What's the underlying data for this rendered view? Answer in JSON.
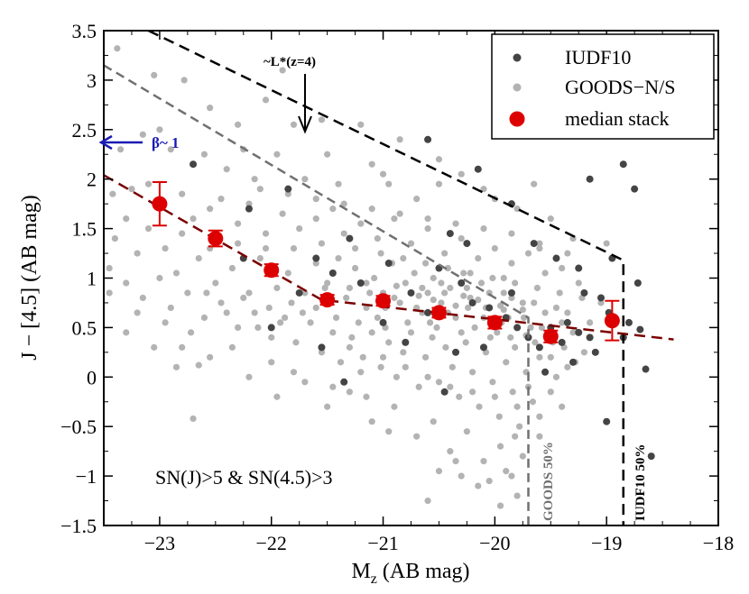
{
  "chart_data": {
    "type": "scatter",
    "title": "",
    "xlabel_main": "M",
    "xlabel_sub": "z",
    "xlabel_rest": " (AB mag)",
    "ylabel": "J − [4.5] (AB mag)",
    "xlim": [
      -23.5,
      -18
    ],
    "ylim": [
      -1.5,
      3.5
    ],
    "xticks": [
      -23,
      -22,
      -21,
      -20,
      -19,
      -18
    ],
    "xtick_labels": [
      "−23",
      "−22",
      "−21",
      "−20",
      "−19",
      "−18"
    ],
    "yticks": [
      -1.5,
      -1,
      -0.5,
      0,
      0.5,
      1,
      1.5,
      2,
      2.5,
      3,
      3.5
    ],
    "ytick_labels": [
      "−1.5",
      "−1",
      "−0.5",
      "0",
      "0.5",
      "1",
      "1.5",
      "2",
      "2.5",
      "3",
      "3.5"
    ],
    "grid": false,
    "legend_position": "top-right",
    "legend": [
      "IUDF10",
      "GOODS−N/S",
      "median stack"
    ],
    "colors": {
      "iudf10": "#444444",
      "goods": "#b3b3b3",
      "median": "#dd0000",
      "fit": "#7a0000",
      "lstar_line": "#000000",
      "goods_line": "#707070",
      "beta_arrow": "#1a1ab4"
    },
    "median_stack": {
      "x": [
        -23.0,
        -22.5,
        -22.0,
        -21.5,
        -21.0,
        -20.5,
        -20.0,
        -19.5,
        -18.95
      ],
      "y": [
        1.75,
        1.4,
        1.08,
        0.78,
        0.77,
        0.65,
        0.55,
        0.41,
        0.57
      ],
      "yerr": [
        0.22,
        0.08,
        0.06,
        0.05,
        0.05,
        0.05,
        0.06,
        0.06,
        0.2
      ]
    },
    "fit_line": [
      {
        "x": -23.5,
        "y": 2.04
      },
      {
        "x": -21.55,
        "y": 0.78
      },
      {
        "x": -18.4,
        "y": 0.38
      }
    ],
    "lstar_limit_line": [
      {
        "x": -23.1,
        "y": 3.5
      },
      {
        "x": -18.85,
        "y": 1.18
      },
      {
        "x": -18.85,
        "y": -1.5
      }
    ],
    "goods_limit_line": [
      {
        "x": -23.5,
        "y": 3.15
      },
      {
        "x": -19.7,
        "y": 0.6
      },
      {
        "x": -19.7,
        "y": -1.5
      }
    ],
    "goods_points": [
      [
        -23.38,
        3.32
      ],
      [
        -23.05,
        3.05
      ],
      [
        -22.78,
        3.0
      ],
      [
        -22.55,
        2.72
      ],
      [
        -22.3,
        2.55
      ],
      [
        -22.05,
        2.8
      ],
      [
        -21.9,
        3.1
      ],
      [
        -21.8,
        2.55
      ],
      [
        -21.55,
        2.6
      ],
      [
        -21.2,
        2.55
      ],
      [
        -20.85,
        2.4
      ],
      [
        -20.5,
        2.2
      ],
      [
        -23.15,
        2.45
      ],
      [
        -23.0,
        2.5
      ],
      [
        -22.9,
        2.3
      ],
      [
        -22.6,
        2.25
      ],
      [
        -22.4,
        2.1
      ],
      [
        -22.15,
        2.0
      ],
      [
        -21.95,
        2.25
      ],
      [
        -21.7,
        2.0
      ],
      [
        -21.4,
        1.95
      ],
      [
        -21.1,
        2.15
      ],
      [
        -20.95,
        1.95
      ],
      [
        -20.7,
        1.8
      ],
      [
        -20.3,
        2.05
      ],
      [
        -20.1,
        1.9
      ],
      [
        -19.8,
        1.7
      ],
      [
        -19.5,
        1.6
      ],
      [
        -19.3,
        1.4
      ],
      [
        -19.0,
        1.35
      ],
      [
        -23.35,
        2.3
      ],
      [
        -23.42,
        1.85
      ],
      [
        -23.25,
        1.9
      ],
      [
        -23.1,
        1.95
      ],
      [
        -22.8,
        1.85
      ],
      [
        -22.7,
        1.6
      ],
      [
        -22.55,
        1.7
      ],
      [
        -22.45,
        1.8
      ],
      [
        -22.3,
        1.55
      ],
      [
        -22.2,
        1.75
      ],
      [
        -22.05,
        1.45
      ],
      [
        -21.9,
        1.65
      ],
      [
        -21.75,
        1.5
      ],
      [
        -21.6,
        1.6
      ],
      [
        -21.45,
        1.7
      ],
      [
        -21.35,
        1.45
      ],
      [
        -21.2,
        1.55
      ],
      [
        -21.05,
        1.4
      ],
      [
        -20.9,
        1.6
      ],
      [
        -20.75,
        1.35
      ],
      [
        -20.6,
        1.5
      ],
      [
        -20.45,
        1.25
      ],
      [
        -20.3,
        1.4
      ],
      [
        -20.15,
        1.2
      ],
      [
        -20.0,
        1.3
      ],
      [
        -19.85,
        1.15
      ],
      [
        -19.7,
        1.25
      ],
      [
        -19.55,
        1.05
      ],
      [
        -19.4,
        1.1
      ],
      [
        -19.25,
        0.95
      ],
      [
        -23.4,
        1.4
      ],
      [
        -23.2,
        1.25
      ],
      [
        -23.1,
        1.5
      ],
      [
        -22.95,
        1.3
      ],
      [
        -22.85,
        1.05
      ],
      [
        -22.65,
        1.2
      ],
      [
        -22.5,
        0.95
      ],
      [
        -22.35,
        1.1
      ],
      [
        -22.2,
        0.85
      ],
      [
        -22.1,
        1.2
      ],
      [
        -21.95,
        0.9
      ],
      [
        -21.85,
        1.05
      ],
      [
        -21.7,
        0.85
      ],
      [
        -21.6,
        1.15
      ],
      [
        -21.5,
        0.95
      ],
      [
        -21.4,
        1.2
      ],
      [
        -21.3,
        0.9
      ],
      [
        -21.25,
        1.1
      ],
      [
        -21.15,
        0.7
      ],
      [
        -21.08,
        1.0
      ],
      [
        -21.0,
        0.85
      ],
      [
        -20.92,
        1.15
      ],
      [
        -20.85,
        0.75
      ],
      [
        -20.8,
        0.95
      ],
      [
        -20.72,
        1.05
      ],
      [
        -20.65,
        0.65
      ],
      [
        -20.6,
        0.85
      ],
      [
        -20.55,
        1.0
      ],
      [
        -20.48,
        0.75
      ],
      [
        -20.4,
        0.9
      ],
      [
        -20.35,
        0.6
      ],
      [
        -20.28,
        1.05
      ],
      [
        -20.22,
        0.8
      ],
      [
        -20.18,
        0.5
      ],
      [
        -20.12,
        0.95
      ],
      [
        -20.05,
        0.7
      ],
      [
        -19.98,
        0.45
      ],
      [
        -19.92,
        0.85
      ],
      [
        -19.88,
        0.6
      ],
      [
        -19.82,
        0.3
      ],
      [
        -19.75,
        0.75
      ],
      [
        -19.68,
        0.5
      ],
      [
        -19.6,
        0.2
      ],
      [
        -19.55,
        0.65
      ],
      [
        -19.48,
        0.35
      ],
      [
        -19.4,
        0.55
      ],
      [
        -19.35,
        0.1
      ],
      [
        -19.3,
        0.45
      ],
      [
        -23.3,
        0.95
      ],
      [
        -23.15,
        0.8
      ],
      [
        -23.0,
        1.0
      ],
      [
        -22.9,
        0.7
      ],
      [
        -22.75,
        0.85
      ],
      [
        -22.6,
        0.6
      ],
      [
        -22.45,
        0.75
      ],
      [
        -22.3,
        0.5
      ],
      [
        -22.15,
        0.65
      ],
      [
        -22.0,
        0.4
      ],
      [
        -21.88,
        0.6
      ],
      [
        -21.78,
        0.35
      ],
      [
        -21.65,
        0.55
      ],
      [
        -21.55,
        0.25
      ],
      [
        -21.45,
        0.45
      ],
      [
        -21.38,
        0.15
      ],
      [
        -21.28,
        0.4
      ],
      [
        -21.18,
        0.2
      ],
      [
        -21.1,
        0.45
      ],
      [
        -21.02,
        0.1
      ],
      [
        -20.95,
        0.35
      ],
      [
        -20.88,
        0.0
      ],
      [
        -20.82,
        0.25
      ],
      [
        -20.75,
        0.45
      ],
      [
        -20.68,
        -0.1
      ],
      [
        -20.62,
        0.2
      ],
      [
        -20.56,
        0.4
      ],
      [
        -20.5,
        -0.05
      ],
      [
        -20.44,
        0.3
      ],
      [
        -20.38,
        0.1
      ],
      [
        -20.32,
        -0.2
      ],
      [
        -20.26,
        0.35
      ],
      [
        -20.2,
        0.05
      ],
      [
        -20.14,
        -0.3
      ],
      [
        -20.08,
        0.25
      ],
      [
        -20.02,
        -0.05
      ],
      [
        -19.96,
        -0.4
      ],
      [
        -19.9,
        0.15
      ],
      [
        -19.84,
        -0.15
      ],
      [
        -19.78,
        -0.5
      ],
      [
        -19.72,
        0.05
      ],
      [
        -19.66,
        -0.25
      ],
      [
        -22.85,
        0.1
      ],
      [
        -22.65,
        0.12
      ],
      [
        -22.7,
        -0.42
      ],
      [
        -22.2,
        0.0
      ],
      [
        -21.95,
        -0.2
      ],
      [
        -21.7,
        -0.05
      ],
      [
        -21.5,
        -0.3
      ],
      [
        -21.3,
        -0.15
      ],
      [
        -21.1,
        -0.45
      ],
      [
        -20.9,
        -0.3
      ],
      [
        -20.7,
        -0.6
      ],
      [
        -20.55,
        -0.45
      ],
      [
        -20.4,
        -0.75
      ],
      [
        -20.25,
        -0.55
      ],
      [
        -20.1,
        -0.85
      ],
      [
        -19.95,
        -0.7
      ],
      [
        -19.85,
        -1.0
      ],
      [
        -19.8,
        -1.2
      ],
      [
        -20.3,
        -1.0
      ],
      [
        -20.15,
        -1.1
      ],
      [
        -19.95,
        -1.3
      ],
      [
        -20.6,
        -1.25
      ],
      [
        -19.82,
        -0.6
      ],
      [
        -19.6,
        -0.4
      ],
      [
        -21.6,
        0.7
      ],
      [
        -21.52,
        0.9
      ],
      [
        -21.42,
        0.6
      ],
      [
        -21.33,
        0.8
      ],
      [
        -21.22,
        0.55
      ],
      [
        -21.12,
        0.85
      ],
      [
        -21.05,
        0.6
      ],
      [
        -20.98,
        0.5
      ],
      [
        -20.9,
        0.8
      ],
      [
        -20.78,
        0.55
      ],
      [
        -20.7,
        0.7
      ],
      [
        -20.58,
        0.55
      ],
      [
        -20.52,
        0.5
      ],
      [
        -20.42,
        0.65
      ],
      [
        -20.3,
        0.45
      ],
      [
        -20.24,
        0.7
      ],
      [
        -20.1,
        0.6
      ],
      [
        -20.04,
        0.4
      ],
      [
        -19.94,
        0.55
      ],
      [
        -19.86,
        0.4
      ],
      [
        -19.74,
        0.6
      ],
      [
        -19.64,
        0.35
      ],
      [
        -19.58,
        0.5
      ],
      [
        -19.5,
        0.2
      ],
      [
        -21.72,
        0.65
      ],
      [
        -21.82,
        0.75
      ],
      [
        -21.92,
        0.55
      ],
      [
        -22.02,
        0.7
      ],
      [
        -22.12,
        0.5
      ],
      [
        -22.25,
        0.8
      ],
      [
        -22.4,
        0.65
      ],
      [
        -22.58,
        0.85
      ],
      [
        -22.72,
        0.45
      ],
      [
        -22.95,
        0.55
      ],
      [
        -23.2,
        0.65
      ],
      [
        -23.45,
        0.85
      ],
      [
        -21.25,
        1.3
      ],
      [
        -21.02,
        1.25
      ],
      [
        -20.82,
        1.2
      ],
      [
        -20.62,
        1.15
      ],
      [
        -20.42,
        1.1
      ],
      [
        -20.22,
        1.05
      ],
      [
        -20.02,
        1.0
      ],
      [
        -19.82,
        0.95
      ],
      [
        -19.62,
        0.9
      ],
      [
        -19.42,
        0.85
      ],
      [
        -19.22,
        0.8
      ],
      [
        -19.05,
        0.75
      ],
      [
        -21.55,
        1.35
      ],
      [
        -21.8,
        1.3
      ],
      [
        -22.05,
        1.3
      ],
      [
        -22.3,
        1.35
      ],
      [
        -22.55,
        1.3
      ],
      [
        -22.8,
        1.45
      ],
      [
        -20.65,
        0.9
      ],
      [
        -20.55,
        0.78
      ],
      [
        -20.45,
        0.85
      ],
      [
        -20.35,
        0.72
      ],
      [
        -20.25,
        0.9
      ],
      [
        -20.15,
        0.78
      ],
      [
        -20.05,
        0.85
      ],
      [
        -19.95,
        0.72
      ],
      [
        -19.85,
        0.8
      ],
      [
        -19.75,
        0.68
      ],
      [
        -19.65,
        0.75
      ],
      [
        -19.45,
        0.7
      ],
      [
        -21.15,
        0.95
      ],
      [
        -20.98,
        0.7
      ],
      [
        -20.88,
        0.92
      ],
      [
        -20.68,
        0.82
      ],
      [
        -20.48,
        0.95
      ],
      [
        -20.28,
        0.82
      ],
      [
        -20.08,
        0.7
      ],
      [
        -19.92,
        0.68
      ],
      [
        -19.72,
        0.42
      ],
      [
        -19.52,
        0.45
      ],
      [
        -19.38,
        0.3
      ],
      [
        -19.28,
        0.15
      ],
      [
        -21.3,
        0.3
      ],
      [
        -21.2,
        0.05
      ],
      [
        -21.0,
        0.2
      ],
      [
        -20.8,
        0.1
      ],
      [
        -20.6,
        0.0
      ],
      [
        -20.4,
        -0.1
      ],
      [
        -20.2,
        -0.15
      ],
      [
        -20.0,
        -0.2
      ],
      [
        -19.8,
        -0.3
      ],
      [
        -19.7,
        -0.1
      ],
      [
        -19.5,
        -0.15
      ],
      [
        -19.45,
        0.0
      ],
      [
        -22.1,
        1.9
      ],
      [
        -21.85,
        1.85
      ],
      [
        -21.6,
        1.8
      ],
      [
        -21.35,
        1.75
      ],
      [
        -21.1,
        1.7
      ],
      [
        -20.85,
        1.65
      ],
      [
        -20.6,
        1.6
      ],
      [
        -20.35,
        1.55
      ],
      [
        -20.1,
        1.5
      ],
      [
        -19.85,
        1.45
      ],
      [
        -19.6,
        1.35
      ],
      [
        -19.35,
        1.25
      ],
      [
        -22.25,
        2.3
      ],
      [
        -21.5,
        2.25
      ],
      [
        -21.0,
        2.05
      ],
      [
        -20.5,
        1.95
      ],
      [
        -20.0,
        1.8
      ],
      [
        -19.65,
        1.95
      ],
      [
        -23.3,
        1.6
      ],
      [
        -23.45,
        1.1
      ],
      [
        -23.3,
        0.45
      ],
      [
        -23.05,
        0.3
      ],
      [
        -22.8,
        0.3
      ],
      [
        -22.55,
        0.2
      ],
      [
        -22.35,
        0.3
      ],
      [
        -22.0,
        0.15
      ],
      [
        -21.8,
        0.05
      ],
      [
        -21.45,
        -0.1
      ],
      [
        -21.15,
        -0.2
      ],
      [
        -20.95,
        -0.55
      ],
      [
        -19.92,
        1.0
      ],
      [
        -19.6,
        1.3
      ],
      [
        -19.35,
        0.65
      ],
      [
        -19.15,
        0.55
      ],
      [
        -19.2,
        0.25
      ],
      [
        -19.4,
        -0.3
      ],
      [
        -19.6,
        -0.6
      ],
      [
        -19.75,
        -0.8
      ],
      [
        -19.9,
        -0.95
      ],
      [
        -20.05,
        -1.05
      ],
      [
        -20.35,
        -0.85
      ],
      [
        -20.5,
        -0.95
      ]
    ],
    "iudf10_points": [
      [
        -22.2,
        1.7
      ],
      [
        -21.85,
        1.9
      ],
      [
        -21.6,
        1.2
      ],
      [
        -21.45,
        1.05
      ],
      [
        -21.2,
        0.95
      ],
      [
        -20.95,
        1.15
      ],
      [
        -20.75,
        0.85
      ],
      [
        -20.5,
        1.1
      ],
      [
        -20.3,
        0.95
      ],
      [
        -20.2,
        0.75
      ],
      [
        -20.05,
        0.7
      ],
      [
        -19.9,
        0.6
      ],
      [
        -19.8,
        0.5
      ],
      [
        -19.7,
        0.4
      ],
      [
        -19.6,
        0.3
      ],
      [
        -19.5,
        0.5
      ],
      [
        -19.4,
        0.35
      ],
      [
        -19.35,
        0.55
      ],
      [
        -19.25,
        0.45
      ],
      [
        -19.15,
        0.4
      ],
      [
        -19.05,
        0.8
      ],
      [
        -18.98,
        0.65
      ],
      [
        -18.8,
        0.55
      ],
      [
        -18.7,
        0.48
      ],
      [
        -18.85,
        0.4
      ],
      [
        -19.1,
        0.25
      ],
      [
        -19.3,
        0.15
      ],
      [
        -19.55,
        0.05
      ],
      [
        -19.0,
        -0.45
      ],
      [
        -18.65,
        0.08
      ],
      [
        -18.6,
        -0.8
      ],
      [
        -18.85,
        2.15
      ],
      [
        -18.75,
        1.9
      ],
      [
        -19.15,
        2.0
      ],
      [
        -19.85,
        1.75
      ],
      [
        -20.15,
        2.1
      ],
      [
        -20.6,
        2.4
      ],
      [
        -20.4,
        1.45
      ],
      [
        -20.25,
        1.35
      ],
      [
        -19.65,
        1.35
      ],
      [
        -19.45,
        1.2
      ],
      [
        -19.25,
        1.1
      ],
      [
        -22.7,
        2.15
      ],
      [
        -21.3,
        1.4
      ],
      [
        -21.0,
        0.55
      ],
      [
        -20.8,
        0.35
      ],
      [
        -20.6,
        0.65
      ],
      [
        -20.35,
        0.25
      ],
      [
        -21.75,
        0.85
      ],
      [
        -22.0,
        0.5
      ],
      [
        -22.25,
        1.2
      ],
      [
        -20.45,
        -0.15
      ],
      [
        -20.1,
        0.3
      ],
      [
        -19.85,
        0.85
      ],
      [
        -19.2,
        0.85
      ],
      [
        -18.95,
        1.2
      ],
      [
        -18.72,
        0.95
      ],
      [
        -21.55,
        0.3
      ],
      [
        -21.35,
        -0.05
      ]
    ],
    "annotations": {
      "lstar_label": "~L*(z=4)",
      "beta_label": "β~ 1",
      "selection_text": "SN(J)>5 & SN(4.5)>3",
      "goods_completeness": "GOODS 50%",
      "iudf10_completeness": "IUDF10 50%"
    }
  }
}
